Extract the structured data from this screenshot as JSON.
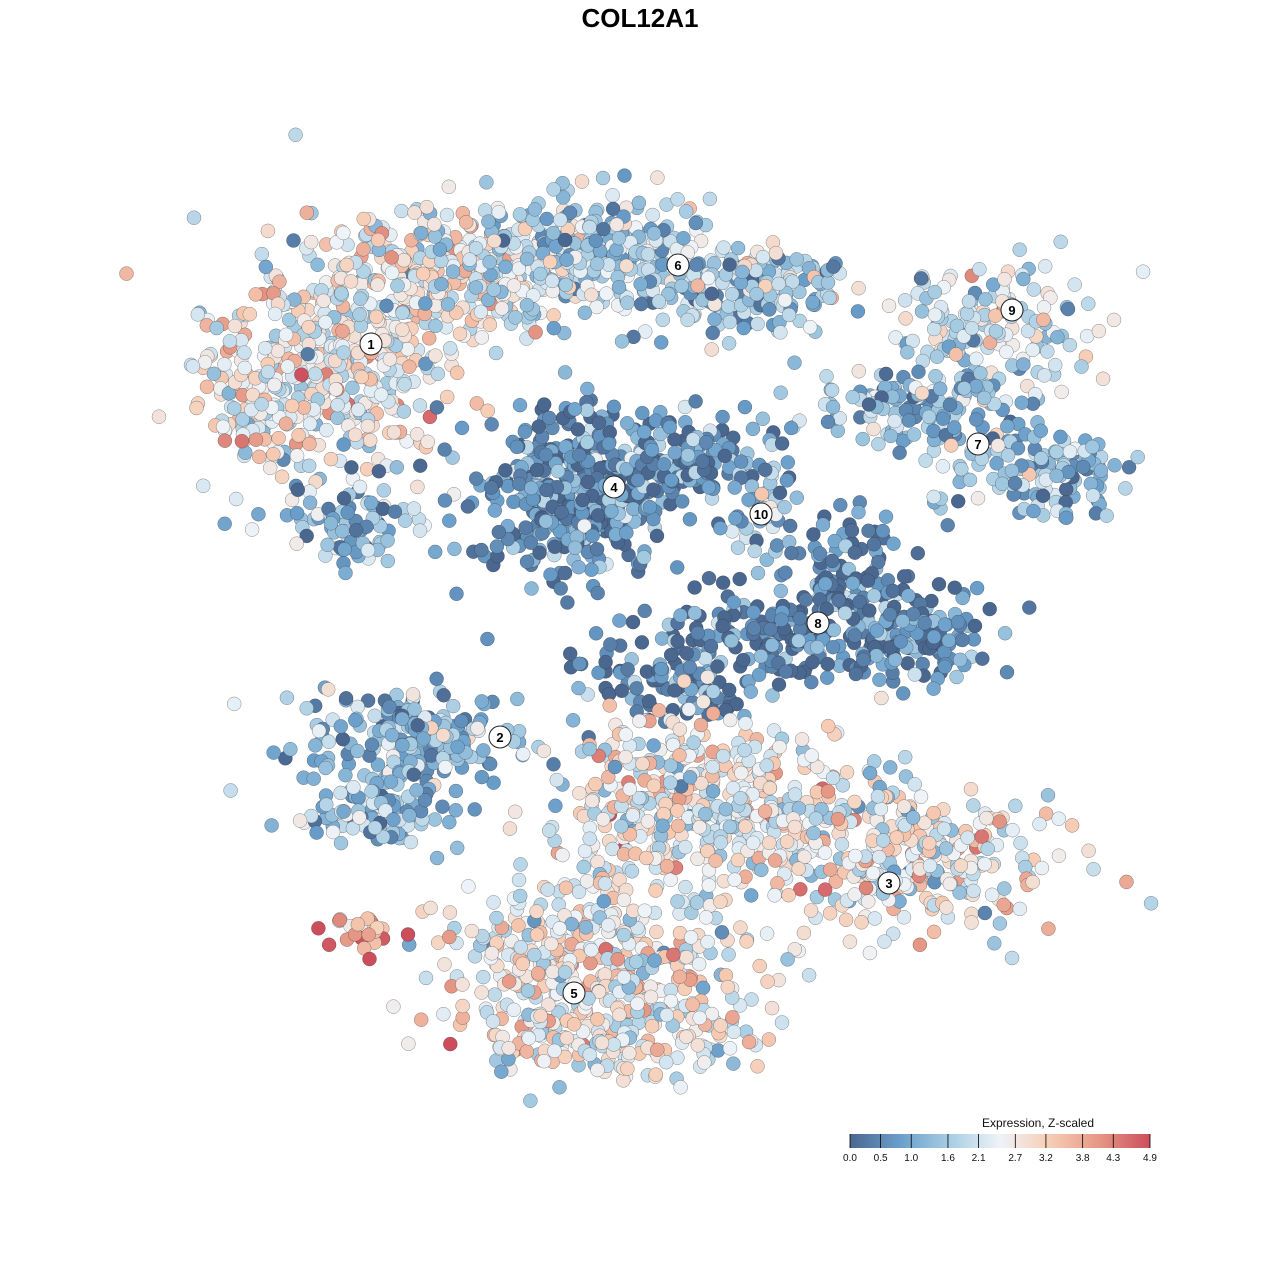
{
  "chart_data": {
    "type": "scatter",
    "title": "COL12A1",
    "xlabel": "",
    "ylabel": "",
    "point_outline_color": "#333333",
    "color_scale": {
      "title": "Expression, Z-scaled",
      "min": 0.0,
      "max": 4.9,
      "tick_labels": [
        "0.0",
        "0.5",
        "1.0",
        "1.6",
        "2.1",
        "2.7",
        "3.2",
        "3.8",
        "4.3",
        "4.9"
      ],
      "tick_values": [
        0.0,
        0.5,
        1.0,
        1.6,
        2.1,
        2.7,
        3.2,
        3.8,
        4.3,
        4.9
      ],
      "colors": [
        "#4a6790",
        "#6a9fcb",
        "#a8cde3",
        "#eef3f8",
        "#f7cdb5",
        "#e59684",
        "#cc4e5c"
      ]
    },
    "clusters": [
      {
        "label": "1",
        "center": [
          371,
          344
        ],
        "mean_expression": 2.5
      },
      {
        "label": "2",
        "center": [
          500,
          737
        ],
        "mean_expression": 1.3
      },
      {
        "label": "3",
        "center": [
          889,
          883
        ],
        "mean_expression": 2.5
      },
      {
        "label": "4",
        "center": [
          614,
          487
        ],
        "mean_expression": 0.6
      },
      {
        "label": "5",
        "center": [
          574,
          993
        ],
        "mean_expression": 2.6
      },
      {
        "label": "6",
        "center": [
          678,
          265
        ],
        "mean_expression": 1.6
      },
      {
        "label": "7",
        "center": [
          978,
          444
        ],
        "mean_expression": 1.3
      },
      {
        "label": "8",
        "center": [
          818,
          623
        ],
        "mean_expression": 0.4
      },
      {
        "label": "9",
        "center": [
          1012,
          310
        ],
        "mean_expression": 2.0
      },
      {
        "label": "10",
        "center": [
          761,
          514
        ],
        "mean_expression": 1.5
      }
    ]
  }
}
